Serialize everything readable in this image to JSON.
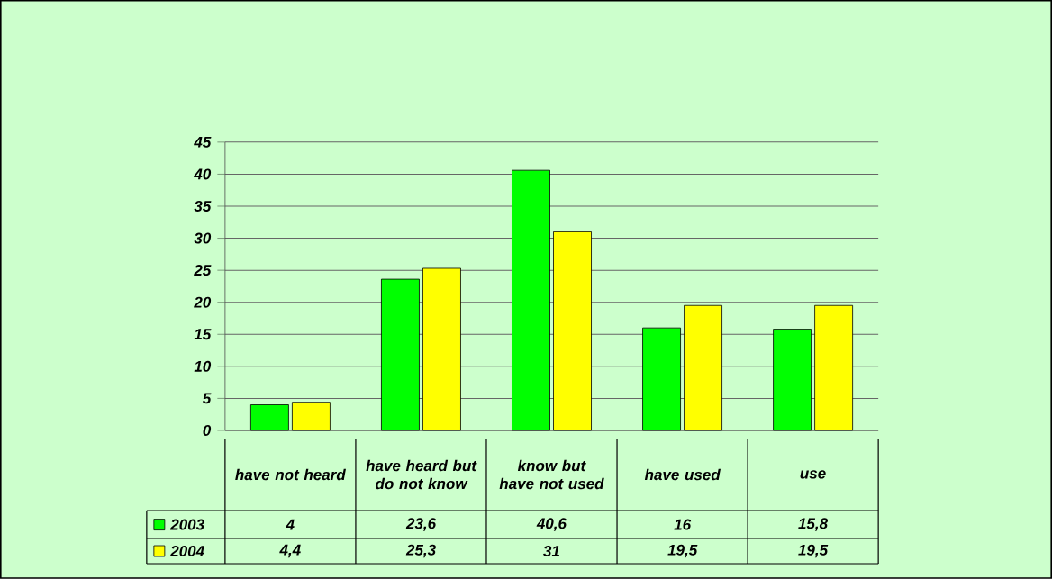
{
  "chart_data": {
    "type": "bar",
    "categories": [
      "have not heard",
      "have heard but do not know",
      "know but have not used",
      "have used",
      "use"
    ],
    "series": [
      {
        "name": "2003",
        "color": "#00ff00",
        "values": [
          4,
          23.6,
          40.6,
          16,
          15.8
        ],
        "value_labels": [
          "4",
          "23,6",
          "40,6",
          "16",
          "15,8"
        ]
      },
      {
        "name": "2004",
        "color": "#ffff00",
        "values": [
          4.4,
          25.3,
          31,
          19.5,
          19.5
        ],
        "value_labels": [
          "4,4",
          "25,3",
          "31",
          "19,5",
          "19,5"
        ]
      }
    ],
    "ylim": [
      0,
      45
    ],
    "yticks": [
      0,
      5,
      10,
      15,
      20,
      25,
      30,
      35,
      40,
      45
    ],
    "grid": "y",
    "legend": "bottom"
  }
}
